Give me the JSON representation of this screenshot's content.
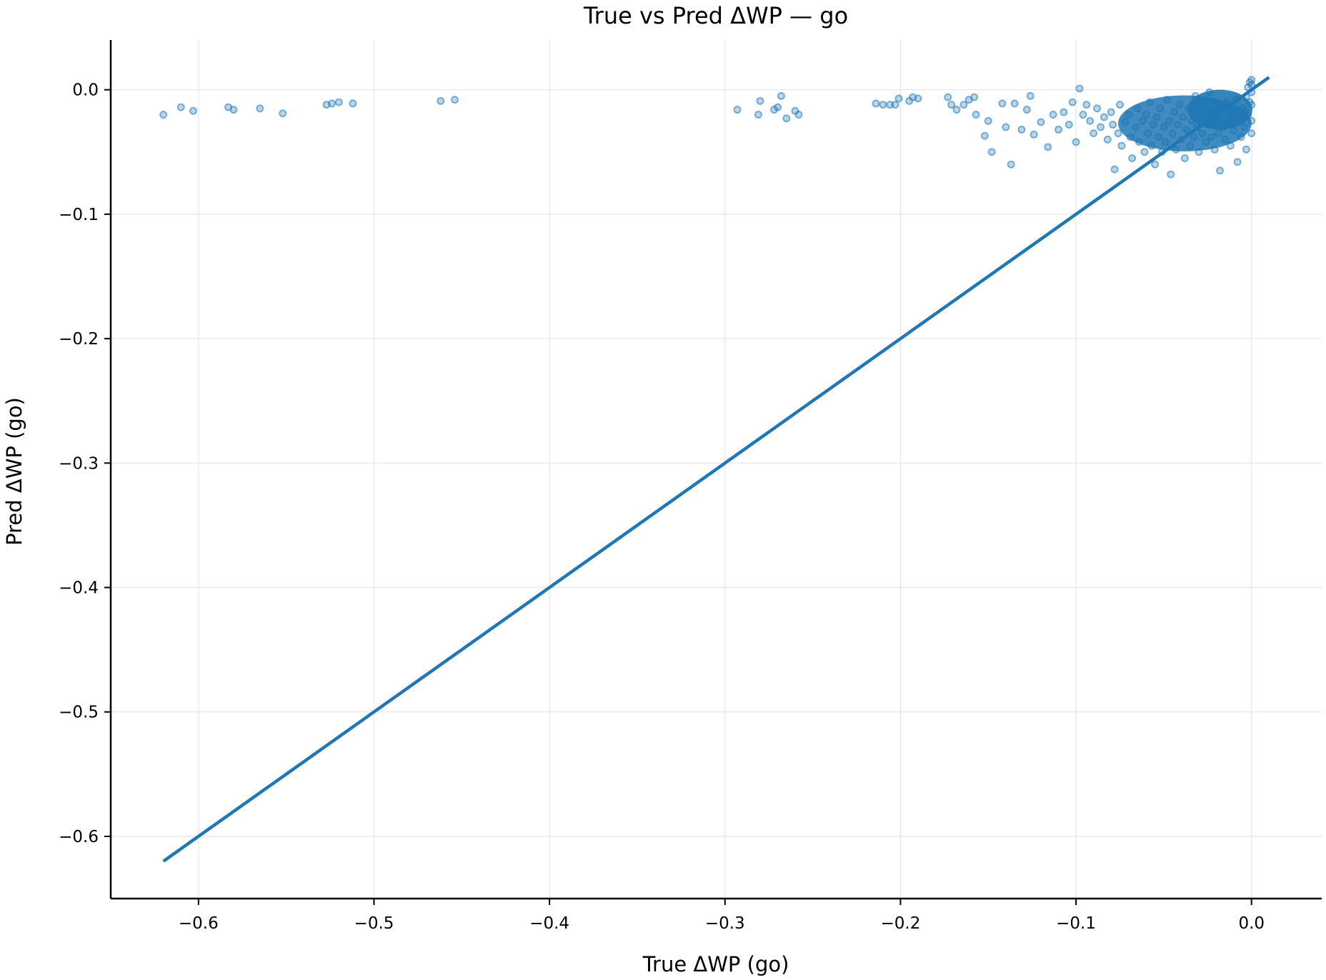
{
  "chart_data": {
    "type": "scatter",
    "title": "True vs Pred ΔWP — go",
    "xlabel": "True ΔWP (go)",
    "ylabel": "Pred ΔWP (go)",
    "xlim": [
      -0.65,
      0.04
    ],
    "ylim": [
      -0.65,
      0.04
    ],
    "grid": true,
    "x_ticks": [
      -0.6,
      -0.5,
      -0.4,
      -0.3,
      -0.2,
      -0.1,
      0.0
    ],
    "x_tick_labels": [
      "−0.6",
      "−0.5",
      "−0.4",
      "−0.3",
      "−0.2",
      "−0.1",
      "0.0"
    ],
    "y_ticks": [
      0.0,
      -0.1,
      -0.2,
      -0.3,
      -0.4,
      -0.5,
      -0.6
    ],
    "y_tick_labels": [
      "0.0",
      "−0.1",
      "−0.2",
      "−0.3",
      "−0.4",
      "−0.5",
      "−0.6"
    ],
    "colors": {
      "point": "#1f77b4",
      "line": "#1f77b4",
      "grid": "#e6e6e6",
      "axis": "#000000"
    },
    "reference_line": {
      "x": [
        -0.62,
        0.01
      ],
      "y": [
        -0.62,
        0.01
      ]
    },
    "series": [
      {
        "points": [
          [
            -0.62,
            -0.02
          ],
          [
            -0.61,
            -0.014
          ],
          [
            -0.603,
            -0.017
          ],
          [
            -0.583,
            -0.014
          ],
          [
            -0.58,
            -0.016
          ],
          [
            -0.565,
            -0.015
          ],
          [
            -0.552,
            -0.019
          ],
          [
            -0.527,
            -0.012
          ],
          [
            -0.524,
            -0.011
          ],
          [
            -0.52,
            -0.01
          ],
          [
            -0.512,
            -0.011
          ],
          [
            -0.462,
            -0.009
          ],
          [
            -0.454,
            -0.008
          ],
          [
            -0.293,
            -0.016
          ],
          [
            -0.281,
            -0.02
          ],
          [
            -0.28,
            -0.009
          ],
          [
            -0.272,
            -0.016
          ],
          [
            -0.27,
            -0.014
          ],
          [
            -0.268,
            -0.005
          ],
          [
            -0.265,
            -0.023
          ],
          [
            -0.26,
            -0.017
          ],
          [
            -0.258,
            -0.02
          ],
          [
            -0.214,
            -0.011
          ],
          [
            -0.21,
            -0.012
          ],
          [
            -0.206,
            -0.012
          ],
          [
            -0.203,
            -0.012
          ],
          [
            -0.201,
            -0.007
          ],
          [
            -0.195,
            -0.009
          ],
          [
            -0.193,
            -0.006
          ],
          [
            -0.19,
            -0.007
          ],
          [
            -0.173,
            -0.006
          ],
          [
            -0.171,
            -0.012
          ],
          [
            -0.168,
            -0.016
          ],
          [
            -0.164,
            -0.012
          ],
          [
            -0.161,
            -0.008
          ],
          [
            -0.158,
            -0.006
          ],
          [
            -0.157,
            -0.02
          ],
          [
            -0.152,
            -0.037
          ],
          [
            -0.15,
            -0.025
          ],
          [
            -0.148,
            -0.05
          ],
          [
            -0.142,
            -0.011
          ],
          [
            -0.14,
            -0.03
          ],
          [
            -0.137,
            -0.06
          ],
          [
            -0.135,
            -0.011
          ],
          [
            -0.131,
            -0.032
          ],
          [
            -0.128,
            -0.016
          ],
          [
            -0.126,
            -0.005
          ],
          [
            -0.124,
            -0.036
          ],
          [
            -0.12,
            -0.026
          ],
          [
            -0.116,
            -0.046
          ],
          [
            -0.113,
            -0.02
          ],
          [
            -0.11,
            -0.032
          ],
          [
            -0.107,
            -0.018
          ],
          [
            -0.104,
            -0.028
          ],
          [
            -0.102,
            -0.01
          ],
          [
            -0.1,
            -0.042
          ],
          [
            -0.098,
            0.001
          ],
          [
            -0.096,
            -0.02
          ],
          [
            -0.094,
            -0.012
          ],
          [
            -0.092,
            -0.025
          ],
          [
            -0.09,
            -0.035
          ],
          [
            -0.088,
            -0.015
          ],
          [
            -0.086,
            -0.03
          ],
          [
            -0.084,
            -0.022
          ],
          [
            -0.082,
            -0.04
          ],
          [
            -0.08,
            -0.018
          ],
          [
            -0.079,
            -0.028
          ],
          [
            -0.078,
            -0.064
          ],
          [
            -0.076,
            -0.035
          ],
          [
            -0.075,
            -0.012
          ],
          [
            -0.074,
            -0.045
          ],
          [
            -0.072,
            -0.026
          ],
          [
            -0.07,
            -0.02
          ],
          [
            -0.069,
            -0.038
          ],
          [
            -0.068,
            -0.055
          ],
          [
            -0.066,
            -0.03
          ],
          [
            -0.065,
            -0.015
          ],
          [
            -0.064,
            -0.042
          ],
          [
            -0.062,
            -0.025
          ],
          [
            -0.061,
            -0.05
          ],
          [
            -0.06,
            -0.02
          ],
          [
            -0.059,
            -0.035
          ],
          [
            -0.058,
            -0.01
          ],
          [
            -0.057,
            -0.045
          ],
          [
            -0.056,
            -0.028
          ],
          [
            -0.055,
            -0.06
          ],
          [
            -0.054,
            -0.022
          ],
          [
            -0.053,
            -0.038
          ],
          [
            -0.052,
            -0.015
          ],
          [
            -0.051,
            -0.05
          ],
          [
            -0.05,
            -0.03
          ],
          [
            -0.049,
            -0.042
          ],
          [
            -0.048,
            -0.008
          ],
          [
            -0.047,
            -0.025
          ],
          [
            -0.046,
            -0.068
          ],
          [
            -0.045,
            -0.035
          ],
          [
            -0.044,
            -0.018
          ],
          [
            -0.043,
            -0.048
          ],
          [
            -0.042,
            -0.028
          ],
          [
            -0.041,
            -0.012
          ],
          [
            -0.04,
            -0.04
          ],
          [
            -0.039,
            -0.022
          ],
          [
            -0.038,
            -0.055
          ],
          [
            -0.037,
            -0.032
          ],
          [
            -0.036,
            -0.015
          ],
          [
            -0.035,
            -0.045
          ],
          [
            -0.034,
            -0.025
          ],
          [
            -0.033,
            -0.038
          ],
          [
            -0.032,
            -0.005
          ],
          [
            -0.031,
            -0.03
          ],
          [
            -0.03,
            -0.05
          ],
          [
            -0.029,
            -0.02
          ],
          [
            -0.028,
            -0.035
          ],
          [
            -0.027,
            -0.012
          ],
          [
            -0.026,
            -0.042
          ],
          [
            -0.025,
            -0.028
          ],
          [
            -0.024,
            -0.002
          ],
          [
            -0.023,
            -0.038
          ],
          [
            -0.022,
            -0.018
          ],
          [
            -0.021,
            -0.048
          ],
          [
            -0.02,
            -0.025
          ],
          [
            -0.019,
            -0.035
          ],
          [
            -0.018,
            -0.065
          ],
          [
            -0.017,
            -0.015
          ],
          [
            -0.016,
            -0.03
          ],
          [
            -0.015,
            -0.04
          ],
          [
            -0.014,
            -0.01
          ],
          [
            -0.013,
            -0.025
          ],
          [
            -0.012,
            -0.045
          ],
          [
            -0.011,
            -0.02
          ],
          [
            -0.01,
            -0.033
          ],
          [
            -0.009,
            -0.008
          ],
          [
            -0.008,
            -0.058
          ],
          [
            -0.007,
            -0.022
          ],
          [
            -0.006,
            -0.038
          ],
          [
            -0.005,
            -0.015
          ],
          [
            -0.004,
            -0.03
          ],
          [
            -0.003,
            -0.048
          ],
          [
            -0.002,
            -0.02
          ],
          [
            -0.001,
            -0.01
          ],
          [
            0.0,
            0.008
          ],
          [
            0.0,
            0.004
          ],
          [
            0.0,
            -0.002
          ],
          [
            0.0,
            -0.012
          ],
          [
            0.0,
            -0.025
          ],
          [
            0.0,
            -0.035
          ],
          [
            -0.001,
            0.006
          ],
          [
            -0.002,
            0.002
          ],
          [
            -0.003,
            -0.006
          ],
          [
            -0.004,
            -0.018
          ]
        ]
      }
    ]
  }
}
